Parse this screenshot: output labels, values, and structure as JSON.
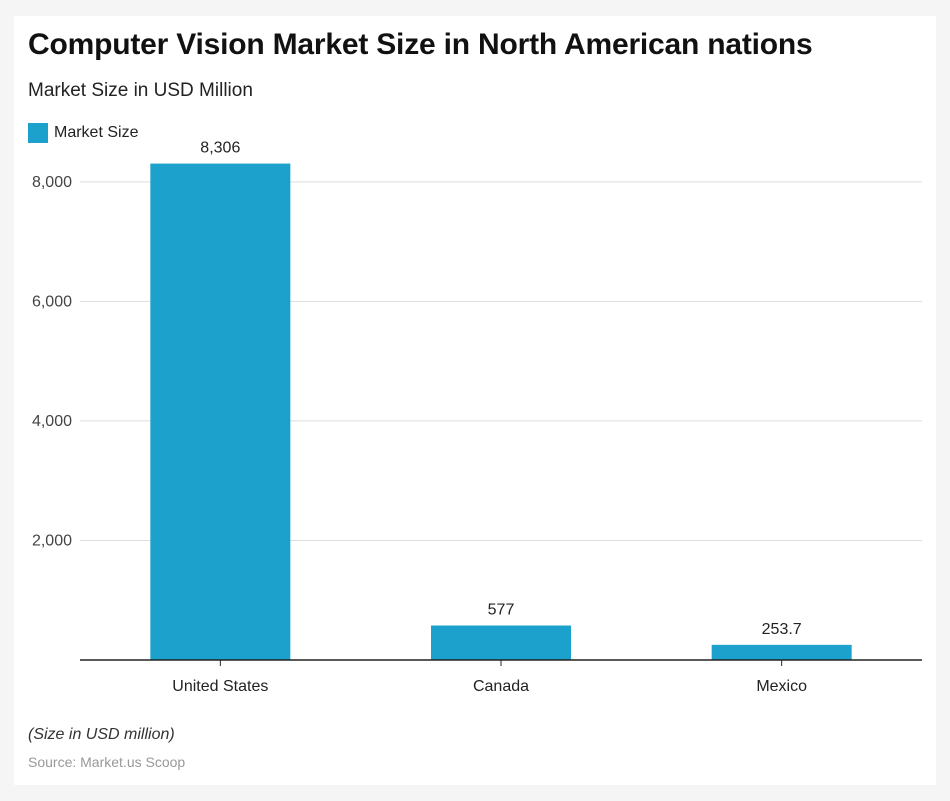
{
  "title": "Computer Vision Market Size in North American nations",
  "subtitle": "Market Size in USD Million",
  "note": "(Size in USD million)",
  "source": "Source: Market.us Scoop",
  "colors": {
    "bar": "#1ba1cc",
    "grid": "#dddddd",
    "axis": "#222222"
  },
  "chart_data": {
    "type": "bar",
    "title": "Computer Vision Market Size in North American nations",
    "subtitle": "Market Size in USD Million",
    "xlabel": "",
    "ylabel": "",
    "categories": [
      "United States",
      "Canada",
      "Mexico"
    ],
    "series": [
      {
        "name": "Market Size",
        "values": [
          8306,
          577,
          253.7
        ]
      }
    ],
    "data_labels": [
      "8,306",
      "577",
      "253.7"
    ],
    "yticks": [
      2000,
      4000,
      6000,
      8000
    ],
    "ytick_labels": [
      "2,000",
      "4,000",
      "6,000",
      "8,000"
    ],
    "ylim": [
      0,
      8600
    ],
    "grid": true,
    "legend": "top-left"
  }
}
